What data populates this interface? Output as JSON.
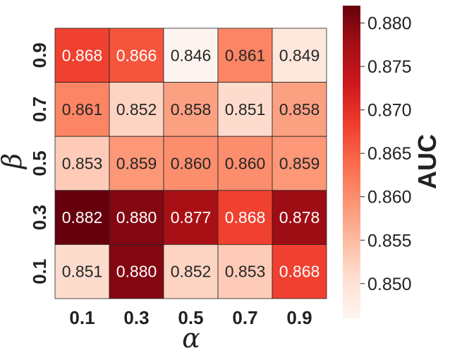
{
  "chart_data": {
    "type": "heatmap",
    "xlabel": "α",
    "ylabel": "β",
    "x_categories": [
      "0.1",
      "0.3",
      "0.5",
      "0.7",
      "0.9"
    ],
    "y_categories": [
      "0.9",
      "0.7",
      "0.5",
      "0.3",
      "0.1"
    ],
    "values": [
      [
        0.868,
        0.866,
        0.846,
        0.861,
        0.849
      ],
      [
        0.861,
        0.852,
        0.858,
        0.851,
        0.858
      ],
      [
        0.853,
        0.859,
        0.86,
        0.86,
        0.859
      ],
      [
        0.882,
        0.88,
        0.877,
        0.868,
        0.878
      ],
      [
        0.851,
        0.88,
        0.852,
        0.853,
        0.868
      ]
    ],
    "colorbar": {
      "label": "AUC",
      "ticks": [
        "0.850",
        "0.855",
        "0.860",
        "0.865",
        "0.870",
        "0.875",
        "0.880"
      ],
      "range": [
        0.846,
        0.882
      ],
      "colormap": "Reds"
    }
  }
}
